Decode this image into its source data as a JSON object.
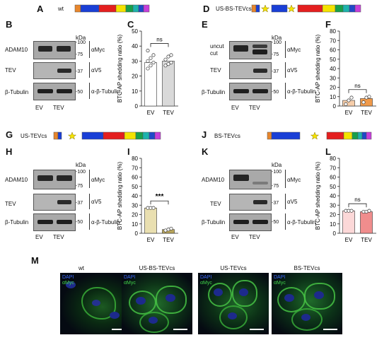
{
  "rows": [
    {
      "construct_panel": "A",
      "construct_label": "wt",
      "construct_segments": [
        "#e8862c",
        "#1a3fd6",
        "#1a3fd6",
        "#e41f1f",
        "#e41f1f",
        "#f4e300",
        "#18a04a",
        "#1db3ad",
        "#1f49c9",
        "#c63fd9"
      ],
      "blot_panel": "B",
      "blot_rows": [
        "ADAM10",
        "TEV",
        "β-Tubulin"
      ],
      "kda_header": "kDa",
      "kda_markers": [
        "-100",
        "-75",
        "-37",
        "-50"
      ],
      "antibodies": [
        "αMyc",
        "αV5",
        "α-β-Tubulin"
      ],
      "lanes": [
        "EV",
        "TEV"
      ],
      "chart_panel": "C"
    },
    {
      "construct_panel": "D",
      "construct_label": "US-BS-TEVcs",
      "blot_panel": "E",
      "blot_rows": [
        "uncut",
        "cut",
        "TEV",
        "β-Tubulin"
      ],
      "kda_header": "kDa",
      "kda_markers": [
        "-100",
        "-75",
        "-37",
        "-50"
      ],
      "antibodies": [
        "αMyc",
        "αV5",
        "α-β-Tubulin"
      ],
      "lanes": [
        "EV",
        "TEV"
      ],
      "chart_panel": "F"
    },
    {
      "construct_panel": "G",
      "construct_label": "US-TEVcs",
      "blot_panel": "H",
      "blot_rows": [
        "ADAM10",
        "TEV",
        "β-Tubulin"
      ],
      "kda_header": "kDa",
      "kda_markers": [
        "-100",
        "-75",
        "-37",
        "-50"
      ],
      "antibodies": [
        "αMyc",
        "αV5",
        "α-β-Tubulin"
      ],
      "lanes": [
        "EV",
        "TEV"
      ],
      "chart_panel": "I"
    },
    {
      "construct_panel": "J",
      "construct_label": "BS-TEVcs",
      "blot_panel": "K",
      "blot_rows": [
        "ADAM10",
        "TEV",
        "β-Tubulin"
      ],
      "kda_header": "kDa",
      "kda_markers": [
        "-100",
        "-75",
        "-37",
        "-50"
      ],
      "antibodies": [
        "αMyc",
        "αV5",
        "α-β-Tubulin"
      ],
      "lanes": [
        "EV",
        "TEV"
      ],
      "chart_panel": "L"
    }
  ],
  "chart_data": [
    {
      "type": "bar",
      "panel": "C",
      "categories": [
        "EV",
        "TEV"
      ],
      "values": [
        29,
        30
      ],
      "points": [
        [
          25,
          27,
          29,
          30,
          32,
          34,
          37
        ],
        [
          27,
          28,
          29,
          31,
          33,
          34
        ]
      ],
      "colors": [
        "#ffffff",
        "#d9d9d9"
      ],
      "ylabel": "BTC-AP shedding ratio (%)",
      "ylim": [
        0,
        50
      ],
      "yticks": [
        0,
        10,
        20,
        30,
        40,
        50
      ],
      "significance": "ns"
    },
    {
      "type": "bar",
      "panel": "F",
      "categories": [
        "EV",
        "TEV"
      ],
      "values": [
        6,
        8
      ],
      "points": [
        [
          2,
          6,
          9
        ],
        [
          4,
          9,
          10
        ]
      ],
      "colors": [
        "#f6cda9",
        "#f09a4a"
      ],
      "ylabel": "BTC-AP shedding ratio (%)",
      "ylim": [
        0,
        80
      ],
      "yticks": [
        0,
        10,
        20,
        30,
        40,
        50,
        60,
        70,
        80
      ],
      "significance": "ns"
    },
    {
      "type": "bar",
      "panel": "I",
      "categories": [
        "EV",
        "TEV"
      ],
      "values": [
        27,
        4
      ],
      "points": [
        [
          27,
          27,
          27
        ],
        [
          3,
          4,
          5
        ]
      ],
      "colors": [
        "#e9dfb0",
        "#b8a55a"
      ],
      "ylabel": "BTC-AP shedding ratio (%)",
      "ylim": [
        0,
        80
      ],
      "yticks": [
        0,
        10,
        20,
        30,
        40,
        50,
        60,
        70,
        80
      ],
      "significance": "***"
    },
    {
      "type": "bar",
      "panel": "L",
      "categories": [
        "EV",
        "TEV"
      ],
      "values": [
        24,
        23
      ],
      "points": [
        [
          24,
          24,
          24
        ],
        [
          23,
          23,
          24
        ]
      ],
      "colors": [
        "#fcd8d8",
        "#f08d8d"
      ],
      "ylabel": "BTC-AP shedding ratio (%)",
      "ylim": [
        0,
        80
      ],
      "yticks": [
        0,
        10,
        20,
        30,
        40,
        50,
        60,
        70,
        80
      ],
      "significance": "ns"
    }
  ],
  "microscopy": {
    "panel": "M",
    "stain_labels": [
      "DAPI",
      "αMyc"
    ],
    "images": [
      "wt",
      "US-BS-TEVcs",
      "US-TEVcs",
      "BS-TEVcs"
    ]
  }
}
